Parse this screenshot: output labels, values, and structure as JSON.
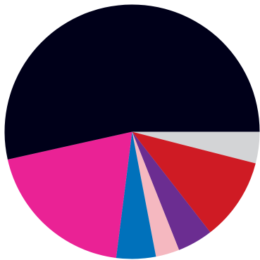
{
  "chart_data": {
    "type": "pie",
    "start_angle_deg": 0,
    "direction": "clockwise",
    "legend": "none",
    "slices": [
      {
        "value": 4.0,
        "color": "#d3d4d6"
      },
      {
        "value": 10.5,
        "color": "#cf1b24"
      },
      {
        "value": 4.5,
        "color": "#6b2d91"
      },
      {
        "value": 3.0,
        "color": "#f5b8c0"
      },
      {
        "value": 5.0,
        "color": "#0071bb"
      },
      {
        "value": 19.5,
        "color": "#ea2295"
      },
      {
        "value": 53.5,
        "color": "#000019"
      }
    ]
  }
}
